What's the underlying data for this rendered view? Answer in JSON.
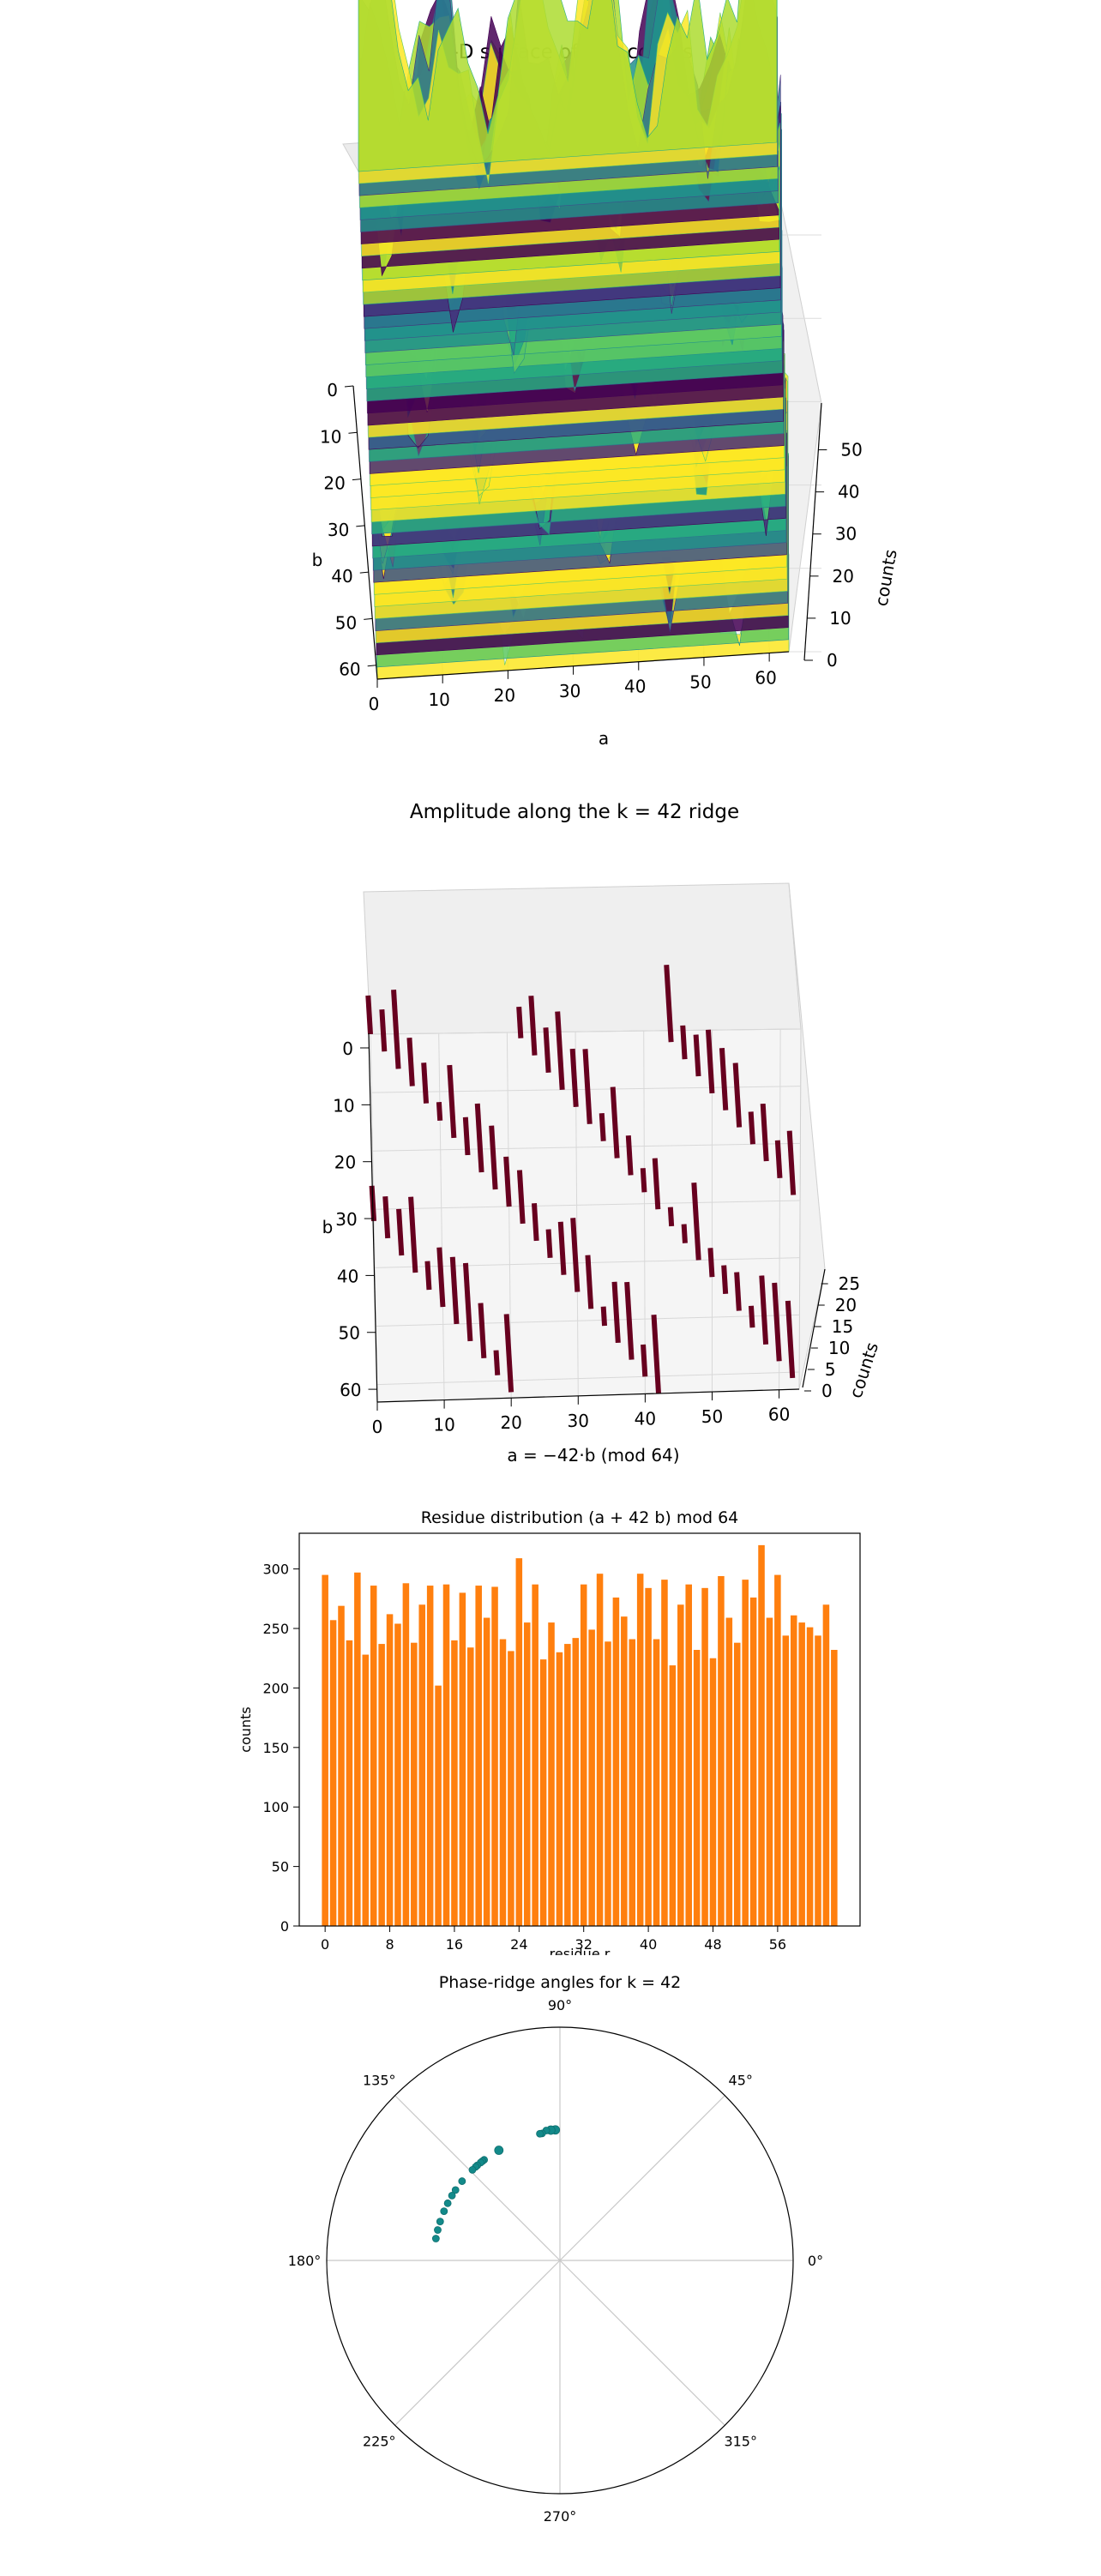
{
  "chart_data": [
    {
      "type": "surface3d",
      "title": "3-D surface of raw counts",
      "xlabel": "a",
      "ylabel": "b",
      "zlabel": "counts",
      "x_ticks": [
        "0",
        "10",
        "20",
        "30",
        "40",
        "50",
        "60"
      ],
      "y_ticks": [
        "0",
        "10",
        "20",
        "30",
        "40",
        "50",
        "60"
      ],
      "z_ticks": [
        "0",
        "10",
        "20",
        "30",
        "40",
        "50"
      ],
      "xlim": [
        0,
        63
      ],
      "ylim": [
        0,
        63
      ],
      "zlim": [
        0,
        55
      ],
      "colormap": "viridis"
    },
    {
      "type": "bar3d",
      "title": "Amplitude along the k = 42 ridge",
      "xlabel": "a = −42·b (mod 64)",
      "ylabel": "b",
      "zlabel": "counts",
      "x_ticks": [
        "0",
        "10",
        "20",
        "30",
        "40",
        "50",
        "60"
      ],
      "y_ticks": [
        "0",
        "10",
        "20",
        "30",
        "40",
        "50",
        "60"
      ],
      "z_ticks": [
        "0",
        "5",
        "10",
        "15",
        "20",
        "25"
      ],
      "xlim": [
        0,
        63
      ],
      "ylim": [
        0,
        63
      ],
      "zlim": [
        0,
        28
      ],
      "color": "#67001f"
    },
    {
      "type": "bar",
      "title": "Residue distribution  (a + 42 b) mod 64",
      "xlabel": "residue r",
      "ylabel": "counts",
      "x_ticks": [
        "0",
        "8",
        "16",
        "24",
        "32",
        "40",
        "48",
        "56"
      ],
      "y_ticks": [
        "0",
        "50",
        "100",
        "150",
        "200",
        "250",
        "300"
      ],
      "ylim": [
        0,
        330
      ],
      "color": "#ff7f0e",
      "categories": [
        0,
        1,
        2,
        3,
        4,
        5,
        6,
        7,
        8,
        9,
        10,
        11,
        12,
        13,
        14,
        15,
        16,
        17,
        18,
        19,
        20,
        21,
        22,
        23,
        24,
        25,
        26,
        27,
        28,
        29,
        30,
        31,
        32,
        33,
        34,
        35,
        36,
        37,
        38,
        39,
        40,
        41,
        42,
        43,
        44,
        45,
        46,
        47,
        48,
        49,
        50,
        51,
        52,
        53,
        54,
        55,
        56,
        57,
        58,
        59,
        60,
        61,
        62,
        63
      ],
      "values": [
        295,
        257,
        269,
        240,
        297,
        228,
        286,
        237,
        262,
        254,
        288,
        238,
        270,
        286,
        202,
        287,
        240,
        280,
        234,
        286,
        259,
        285,
        241,
        231,
        309,
        255,
        287,
        224,
        255,
        230,
        237,
        242,
        287,
        249,
        296,
        239,
        276,
        260,
        241,
        296,
        284,
        241,
        291,
        219,
        270,
        287,
        232,
        284,
        225,
        294,
        259,
        238,
        291,
        276,
        320,
        259,
        295,
        244,
        261,
        255,
        251,
        244,
        270,
        232
      ],
      "grid": false
    },
    {
      "type": "polar",
      "title": "Phase-ridge angles for k = 42",
      "angle_ticks": [
        "0°",
        "45°",
        "90°",
        "135°",
        "180°",
        "225°",
        "270°",
        "315°"
      ],
      "radial_ticks": [],
      "grid": true,
      "color": "#138a8a",
      "points": [
        {
          "theta": 92,
          "r": 0.56,
          "size": 4
        },
        {
          "theta": 94,
          "r": 0.56,
          "size": 4
        },
        {
          "theta": 96,
          "r": 0.56,
          "size": 3
        },
        {
          "theta": 98,
          "r": 0.55,
          "size": 3
        },
        {
          "theta": 99,
          "r": 0.55,
          "size": 3
        },
        {
          "theta": 119,
          "r": 0.54,
          "size": 4
        },
        {
          "theta": 127,
          "r": 0.54,
          "size": 3
        },
        {
          "theta": 128,
          "r": 0.54,
          "size": 3
        },
        {
          "theta": 129,
          "r": 0.54,
          "size": 3
        },
        {
          "theta": 131,
          "r": 0.54,
          "size": 3
        },
        {
          "theta": 132,
          "r": 0.54,
          "size": 3
        },
        {
          "theta": 134,
          "r": 0.54,
          "size": 3
        },
        {
          "theta": 141,
          "r": 0.54,
          "size": 3
        },
        {
          "theta": 146,
          "r": 0.54,
          "size": 3
        },
        {
          "theta": 149,
          "r": 0.54,
          "size": 3
        },
        {
          "theta": 153,
          "r": 0.54,
          "size": 3
        },
        {
          "theta": 157,
          "r": 0.54,
          "size": 3
        },
        {
          "theta": 162,
          "r": 0.54,
          "size": 3
        },
        {
          "theta": 166,
          "r": 0.54,
          "size": 3
        },
        {
          "theta": 170,
          "r": 0.54,
          "size": 3
        }
      ]
    }
  ]
}
